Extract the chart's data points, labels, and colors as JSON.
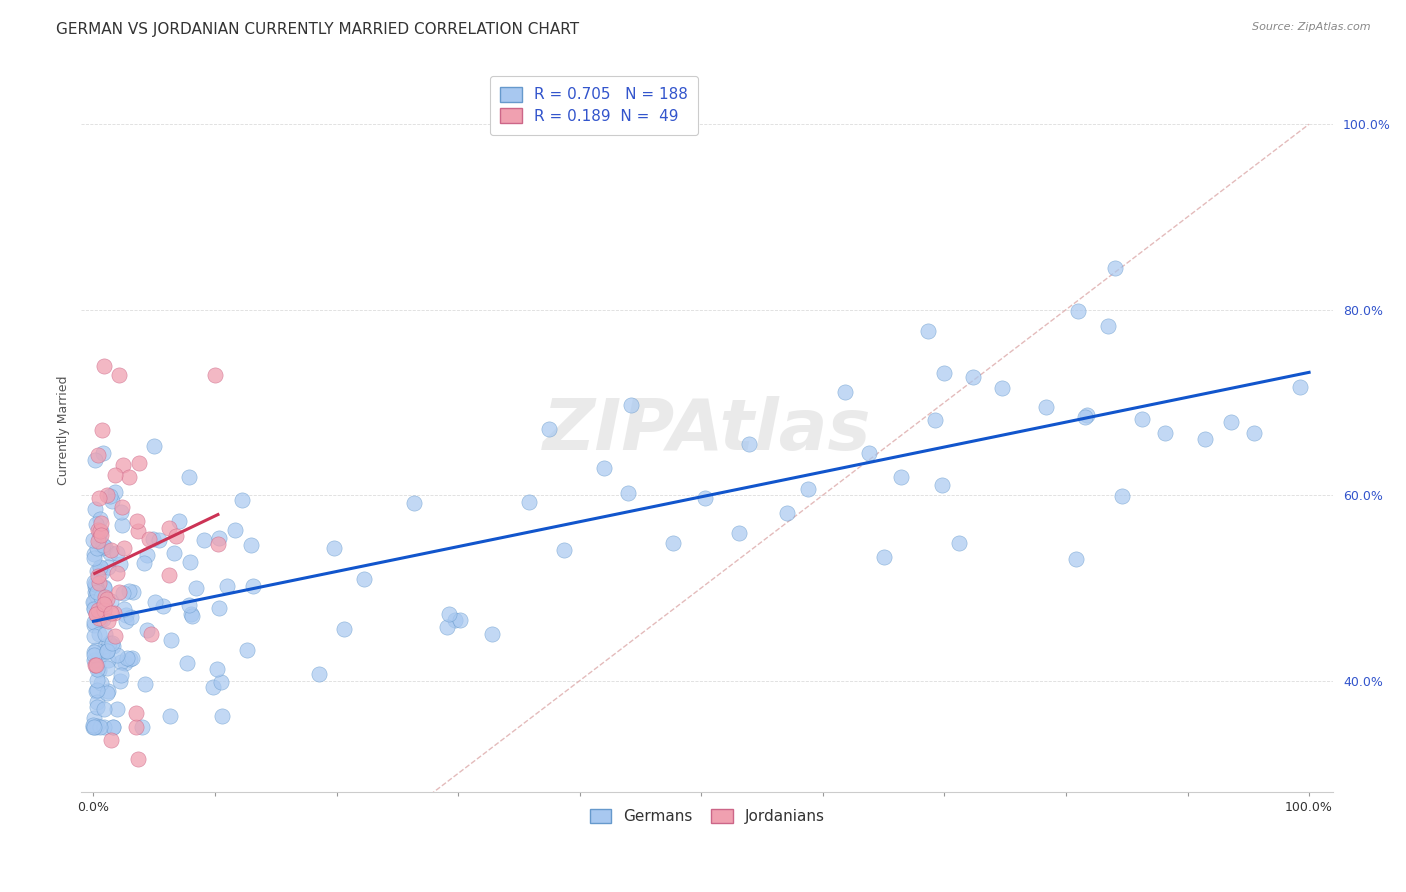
{
  "title": "GERMAN VS JORDANIAN CURRENTLY MARRIED CORRELATION CHART",
  "source": "Source: ZipAtlas.com",
  "ylabel": "Currently Married",
  "x_tick_labels": [
    "0.0%",
    "",
    "",
    "",
    "",
    "",
    "",
    "",
    "",
    "",
    "100.0%"
  ],
  "y_tick_labels": [
    "40.0%",
    "60.0%",
    "80.0%",
    "100.0%"
  ],
  "y_ticks": [
    0.4,
    0.6,
    0.8,
    1.0
  ],
  "german_scatter_color": "#A8C8F0",
  "german_scatter_edge": "#6699CC",
  "jordanian_scatter_color": "#F0A0B0",
  "jordanian_scatter_edge": "#CC6688",
  "german_line_color": "#1155CC",
  "jordanian_line_color": "#CC3355",
  "diagonal_color": "#DDAAAA",
  "R_german": 0.705,
  "N_german": 188,
  "R_jordanian": 0.189,
  "N_jordanian": 49,
  "legend_label_german": "Germans",
  "legend_label_jordanian": "Jordanians",
  "watermark": "ZIPAtlas",
  "title_fontsize": 11,
  "label_fontsize": 9,
  "tick_fontsize": 9,
  "legend_fontsize": 11,
  "background_color": "#ffffff",
  "grid_color": "#DDDDDD",
  "legend_text_color": "#3355CC",
  "ytick_color": "#3355CC",
  "title_color": "#333333",
  "source_color": "#888888"
}
